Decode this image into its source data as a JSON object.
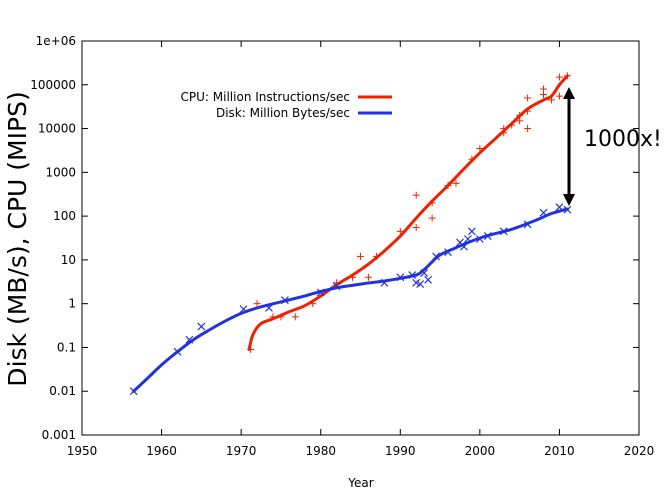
{
  "chart_data": {
    "type": "line",
    "title": "",
    "xlabel": "Year",
    "ylabel": "Disk (MB/s), CPU (MIPS)",
    "xlim": [
      1950,
      2020
    ],
    "ylim": [
      0.001,
      1000000
    ],
    "yscale": "log",
    "grid": false,
    "legend_position": "top-left",
    "x_ticks": [
      "1950",
      "1960",
      "1970",
      "1980",
      "1990",
      "2000",
      "2010",
      "2020"
    ],
    "y_ticks": [
      "0.001",
      "0.01",
      "0.1",
      "1",
      "10",
      "100",
      "1000",
      "10000",
      "100000",
      "1e+06"
    ],
    "annotation": "1000x!",
    "series": [
      {
        "name": "CPU: Million Instructions/sec",
        "color": "#ee2200",
        "marker": "+",
        "points": [
          [
            1971.2,
            0.09
          ],
          [
            1972.0,
            1.0
          ],
          [
            1974.0,
            0.5
          ],
          [
            1975.0,
            0.5
          ],
          [
            1976.8,
            0.5
          ],
          [
            1979.0,
            1.0
          ],
          [
            1982.0,
            3.0
          ],
          [
            1984.0,
            4.0
          ],
          [
            1985.0,
            12.0
          ],
          [
            1986.0,
            4.0
          ],
          [
            1987.0,
            12.0
          ],
          [
            1990.0,
            45.0
          ],
          [
            1992.0,
            300.0
          ],
          [
            1992.0,
            55.0
          ],
          [
            1994.0,
            200.0
          ],
          [
            1994.0,
            90.0
          ],
          [
            1996.0,
            500.0
          ],
          [
            1997.0,
            560.0
          ],
          [
            1999.0,
            2000.0
          ],
          [
            2000.0,
            3500.0
          ],
          [
            2003.0,
            8000.0
          ],
          [
            2003.0,
            10000.0
          ],
          [
            2004.0,
            12000.0
          ],
          [
            2005.0,
            15000.0
          ],
          [
            2005.0,
            20000.0
          ],
          [
            2006.0,
            25000.0
          ],
          [
            2006.0,
            50000.0
          ],
          [
            2006.0,
            10000.0
          ],
          [
            2008.0,
            60000.0
          ],
          [
            2008.0,
            80000.0
          ],
          [
            2009.0,
            45000.0
          ],
          [
            2010.0,
            55000.0
          ],
          [
            2010.0,
            150000.0
          ],
          [
            2011.0,
            160000.0
          ]
        ],
        "curve": [
          [
            1971.0,
            0.09
          ],
          [
            1971.5,
            0.2
          ],
          [
            1972.5,
            0.35
          ],
          [
            1974.0,
            0.45
          ],
          [
            1976.0,
            0.65
          ],
          [
            1978.0,
            0.9
          ],
          [
            1980.0,
            1.5
          ],
          [
            1982.0,
            2.7
          ],
          [
            1984.0,
            4.5
          ],
          [
            1986.0,
            8.0
          ],
          [
            1988.0,
            16.0
          ],
          [
            1990.0,
            35.0
          ],
          [
            1992.0,
            90.0
          ],
          [
            1994.0,
            220.0
          ],
          [
            1996.0,
            500.0
          ],
          [
            1998.0,
            1200.0
          ],
          [
            2000.0,
            2800.0
          ],
          [
            2002.0,
            6000.0
          ],
          [
            2004.0,
            13000.0
          ],
          [
            2006.0,
            28000.0
          ],
          [
            2008.0,
            45000.0
          ],
          [
            2009.0,
            55000.0
          ],
          [
            2010.0,
            100000.0
          ],
          [
            2011.0,
            160000.0
          ]
        ]
      },
      {
        "name": "Disk: Million Bytes/sec",
        "color": "#2233dd",
        "marker": "x",
        "points": [
          [
            1956.5,
            0.01
          ],
          [
            1962.0,
            0.08
          ],
          [
            1963.5,
            0.15
          ],
          [
            1965.0,
            0.3
          ],
          [
            1970.3,
            0.75
          ],
          [
            1973.5,
            0.8
          ],
          [
            1975.5,
            1.2
          ],
          [
            1980.0,
            1.8
          ],
          [
            1982.0,
            2.5
          ],
          [
            1988.0,
            3.0
          ],
          [
            1990.0,
            4.0
          ],
          [
            1991.5,
            4.5
          ],
          [
            1992.0,
            3.0
          ],
          [
            1992.5,
            2.8
          ],
          [
            1993.0,
            5.0
          ],
          [
            1993.5,
            3.5
          ],
          [
            1994.5,
            12.0
          ],
          [
            1996.0,
            15.0
          ],
          [
            1997.5,
            25.0
          ],
          [
            1998.0,
            20.0
          ],
          [
            1998.5,
            30.0
          ],
          [
            1999.0,
            45.0
          ],
          [
            2000.0,
            30.0
          ],
          [
            2001.0,
            35.0
          ],
          [
            2003.0,
            45.0
          ],
          [
            2006.0,
            65.0
          ],
          [
            2008.0,
            120.0
          ],
          [
            2010.0,
            160.0
          ],
          [
            2011.0,
            140.0
          ]
        ],
        "curve": [
          [
            1956.5,
            0.01
          ],
          [
            1958.0,
            0.018
          ],
          [
            1960.0,
            0.04
          ],
          [
            1962.0,
            0.08
          ],
          [
            1964.0,
            0.15
          ],
          [
            1966.0,
            0.25
          ],
          [
            1968.0,
            0.4
          ],
          [
            1970.0,
            0.6
          ],
          [
            1972.0,
            0.8
          ],
          [
            1975.0,
            1.1
          ],
          [
            1978.0,
            1.5
          ],
          [
            1980.0,
            1.9
          ],
          [
            1982.0,
            2.3
          ],
          [
            1985.0,
            2.8
          ],
          [
            1988.0,
            3.3
          ],
          [
            1990.0,
            3.8
          ],
          [
            1992.0,
            4.5
          ],
          [
            1993.0,
            6.0
          ],
          [
            1994.0,
            9.0
          ],
          [
            1995.0,
            13.0
          ],
          [
            1997.0,
            19.0
          ],
          [
            1999.0,
            27.0
          ],
          [
            2001.0,
            36.0
          ],
          [
            2004.0,
            50.0
          ],
          [
            2007.0,
            80.0
          ],
          [
            2009.0,
            115.0
          ],
          [
            2011.0,
            145.0
          ]
        ]
      }
    ]
  }
}
